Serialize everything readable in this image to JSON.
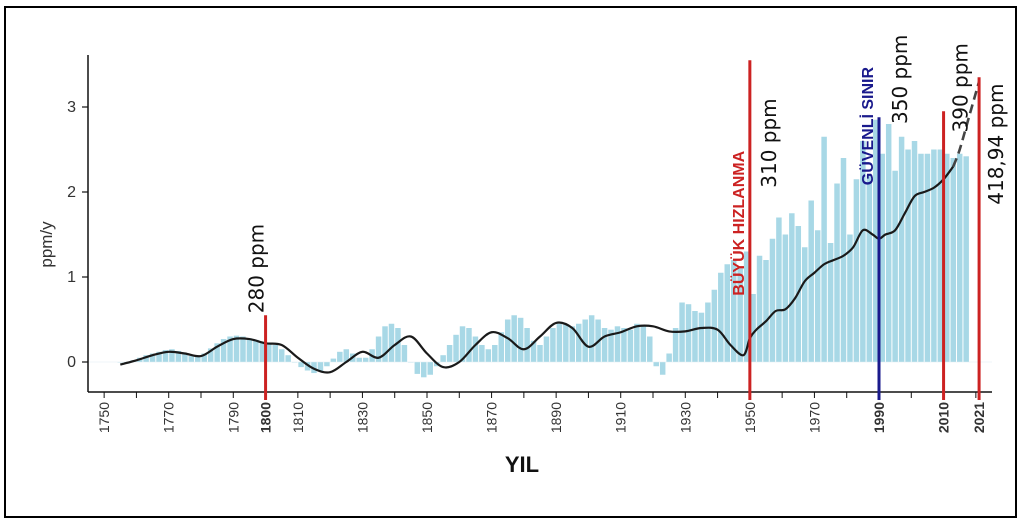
{
  "chart_data": {
    "type": "bar",
    "xlabel": "YIL",
    "ylabel": "ppm/y",
    "xlim": [
      1745,
      2025
    ],
    "ylim": [
      -0.35,
      3.65
    ],
    "yticks": [
      0,
      1,
      2,
      3
    ],
    "xticks": [
      {
        "value": 1750,
        "label": "1750",
        "color": "#333333",
        "bold": false
      },
      {
        "value": 1770,
        "label": "1770",
        "color": "#333333",
        "bold": false
      },
      {
        "value": 1790,
        "label": "1790",
        "color": "#333333",
        "bold": false
      },
      {
        "value": 1800,
        "label": "1800",
        "color": "#cc2222",
        "bold": true
      },
      {
        "value": 1810,
        "label": "1810",
        "color": "#333333",
        "bold": false
      },
      {
        "value": 1830,
        "label": "1830",
        "color": "#333333",
        "bold": false
      },
      {
        "value": 1850,
        "label": "1850",
        "color": "#333333",
        "bold": false
      },
      {
        "value": 1870,
        "label": "1870",
        "color": "#333333",
        "bold": false
      },
      {
        "value": 1890,
        "label": "1890",
        "color": "#333333",
        "bold": false
      },
      {
        "value": 1910,
        "label": "1910",
        "color": "#333333",
        "bold": false
      },
      {
        "value": 1930,
        "label": "1930",
        "color": "#333333",
        "bold": false
      },
      {
        "value": 1950,
        "label": "1950",
        "color": "#333333",
        "bold": false
      },
      {
        "value": 1970,
        "label": "1970",
        "color": "#333333",
        "bold": false
      },
      {
        "value": 1990,
        "label": "1990",
        "color": "#1a1a8c",
        "bold": true
      },
      {
        "value": 2010,
        "label": "2010",
        "color": "#cc2222",
        "bold": true
      },
      {
        "value": 2021,
        "label": "2021",
        "color": "#cc2222",
        "bold": true
      }
    ],
    "bar_color": "#a8d8e6",
    "line_color": "#1a1a1a",
    "bars": {
      "x": [
        1755,
        1757,
        1759,
        1761,
        1763,
        1765,
        1767,
        1769,
        1771,
        1773,
        1775,
        1777,
        1779,
        1781,
        1783,
        1785,
        1787,
        1789,
        1791,
        1793,
        1795,
        1797,
        1799,
        1801,
        1803,
        1805,
        1807,
        1809,
        1811,
        1813,
        1815,
        1817,
        1819,
        1821,
        1823,
        1825,
        1827,
        1829,
        1831,
        1833,
        1835,
        1837,
        1839,
        1841,
        1843,
        1845,
        1847,
        1849,
        1851,
        1853,
        1855,
        1857,
        1859,
        1861,
        1863,
        1865,
        1867,
        1869,
        1871,
        1873,
        1875,
        1877,
        1879,
        1881,
        1883,
        1885,
        1887,
        1889,
        1891,
        1893,
        1895,
        1897,
        1899,
        1901,
        1903,
        1905,
        1907,
        1909,
        1911,
        1913,
        1915,
        1917,
        1919,
        1921,
        1923,
        1925,
        1927,
        1929,
        1931,
        1933,
        1935,
        1937,
        1939,
        1941,
        1943,
        1945,
        1947,
        1949,
        1951,
        1953,
        1955,
        1957,
        1959,
        1961,
        1963,
        1965,
        1967,
        1969,
        1971,
        1973,
        1975,
        1977,
        1979,
        1981,
        1983,
        1985,
        1987,
        1989,
        1991,
        1993,
        1995,
        1997,
        1999,
        2001,
        2003,
        2005,
        2007,
        2009,
        2011,
        2013,
        2015,
        2017
      ],
      "values": [
        0.0,
        -0.02,
        0.02,
        0.05,
        0.08,
        0.1,
        0.12,
        0.14,
        0.15,
        0.13,
        0.1,
        0.07,
        0.06,
        0.1,
        0.16,
        0.22,
        0.27,
        0.3,
        0.31,
        0.3,
        0.28,
        0.26,
        0.24,
        0.22,
        0.2,
        0.15,
        0.08,
        0.0,
        -0.06,
        -0.1,
        -0.13,
        -0.11,
        -0.05,
        0.04,
        0.12,
        0.15,
        0.1,
        0.05,
        0.05,
        0.15,
        0.3,
        0.42,
        0.45,
        0.4,
        0.2,
        0.0,
        -0.14,
        -0.18,
        -0.15,
        -0.05,
        0.08,
        0.2,
        0.32,
        0.42,
        0.4,
        0.3,
        0.2,
        0.15,
        0.2,
        0.35,
        0.5,
        0.55,
        0.52,
        0.4,
        0.25,
        0.2,
        0.3,
        0.4,
        0.45,
        0.44,
        0.42,
        0.45,
        0.5,
        0.55,
        0.5,
        0.4,
        0.38,
        0.42,
        0.4,
        0.38,
        0.45,
        0.42,
        0.3,
        -0.05,
        -0.15,
        0.1,
        0.4,
        0.7,
        0.68,
        0.6,
        0.58,
        0.7,
        0.85,
        1.05,
        1.15,
        1.2,
        1.1,
        1.3,
        0.8,
        1.25,
        1.2,
        1.45,
        1.7,
        1.5,
        1.75,
        1.6,
        1.35,
        1.9,
        1.55,
        2.65,
        1.4,
        2.1,
        2.4,
        1.5,
        2.15,
        2.6,
        2.2,
        2.85,
        2.45,
        2.8,
        2.25,
        2.65,
        2.5,
        2.6,
        2.45,
        2.45,
        2.5,
        2.5,
        2.45,
        2.4,
        2.45,
        2.42
      ]
    },
    "trend_solid": {
      "x": [
        1755,
        1760,
        1765,
        1770,
        1775,
        1780,
        1785,
        1790,
        1795,
        1800,
        1805,
        1810,
        1815,
        1820,
        1825,
        1830,
        1835,
        1840,
        1845,
        1850,
        1855,
        1860,
        1865,
        1870,
        1875,
        1880,
        1885,
        1890,
        1895,
        1900,
        1905,
        1910,
        1915,
        1920,
        1925,
        1930,
        1935,
        1940,
        1944,
        1948,
        1950,
        1952,
        1955,
        1958,
        1961,
        1964,
        1967,
        1970,
        1973,
        1976,
        1979,
        1982,
        1985,
        1988,
        1990,
        1992,
        1995,
        1998,
        2001,
        2004,
        2007,
        2010,
        2013
      ],
      "y": [
        -0.03,
        0.02,
        0.08,
        0.12,
        0.1,
        0.07,
        0.18,
        0.27,
        0.27,
        0.22,
        0.2,
        0.05,
        -0.08,
        -0.12,
        0.0,
        0.12,
        0.05,
        0.2,
        0.3,
        0.1,
        -0.06,
        0.0,
        0.2,
        0.35,
        0.28,
        0.15,
        0.3,
        0.46,
        0.4,
        0.18,
        0.3,
        0.35,
        0.42,
        0.42,
        0.36,
        0.36,
        0.4,
        0.38,
        0.2,
        0.08,
        0.28,
        0.38,
        0.48,
        0.6,
        0.62,
        0.75,
        0.95,
        1.05,
        1.15,
        1.2,
        1.25,
        1.35,
        1.55,
        1.5,
        1.45,
        1.5,
        1.55,
        1.75,
        1.95,
        2.0,
        2.05,
        2.15,
        2.3
      ]
    },
    "trend_dashed": {
      "x": [
        2013,
        2015,
        2018,
        2021
      ],
      "y": [
        2.3,
        2.5,
        2.9,
        3.3
      ]
    },
    "markers": [
      {
        "x": 1800,
        "color": "#cc2222",
        "y_top": 0.55,
        "label": "280 ppm",
        "label_color": "#111111"
      },
      {
        "x": 1950,
        "color": "#cc2222",
        "y_top": 3.55,
        "label": "310 ppm",
        "label_color": "#111111",
        "title": "BÜYÜK HIZLANMA",
        "title_color": "#cc2222"
      },
      {
        "x": 1990,
        "color": "#1a1a8c",
        "y_top": 2.88,
        "label": "350 ppm",
        "label_color": "#1a1a8c",
        "title": "GÜVENLİ SINIR",
        "title_color": "#1a1a8c"
      },
      {
        "x": 2010,
        "color": "#cc2222",
        "y_top": 2.95,
        "label": "390 ppm",
        "label_color": "#111111"
      },
      {
        "x": 2021,
        "color": "#cc2222",
        "y_top": 3.35,
        "label": "418,94 ppm",
        "label_color": "#111111"
      }
    ]
  }
}
